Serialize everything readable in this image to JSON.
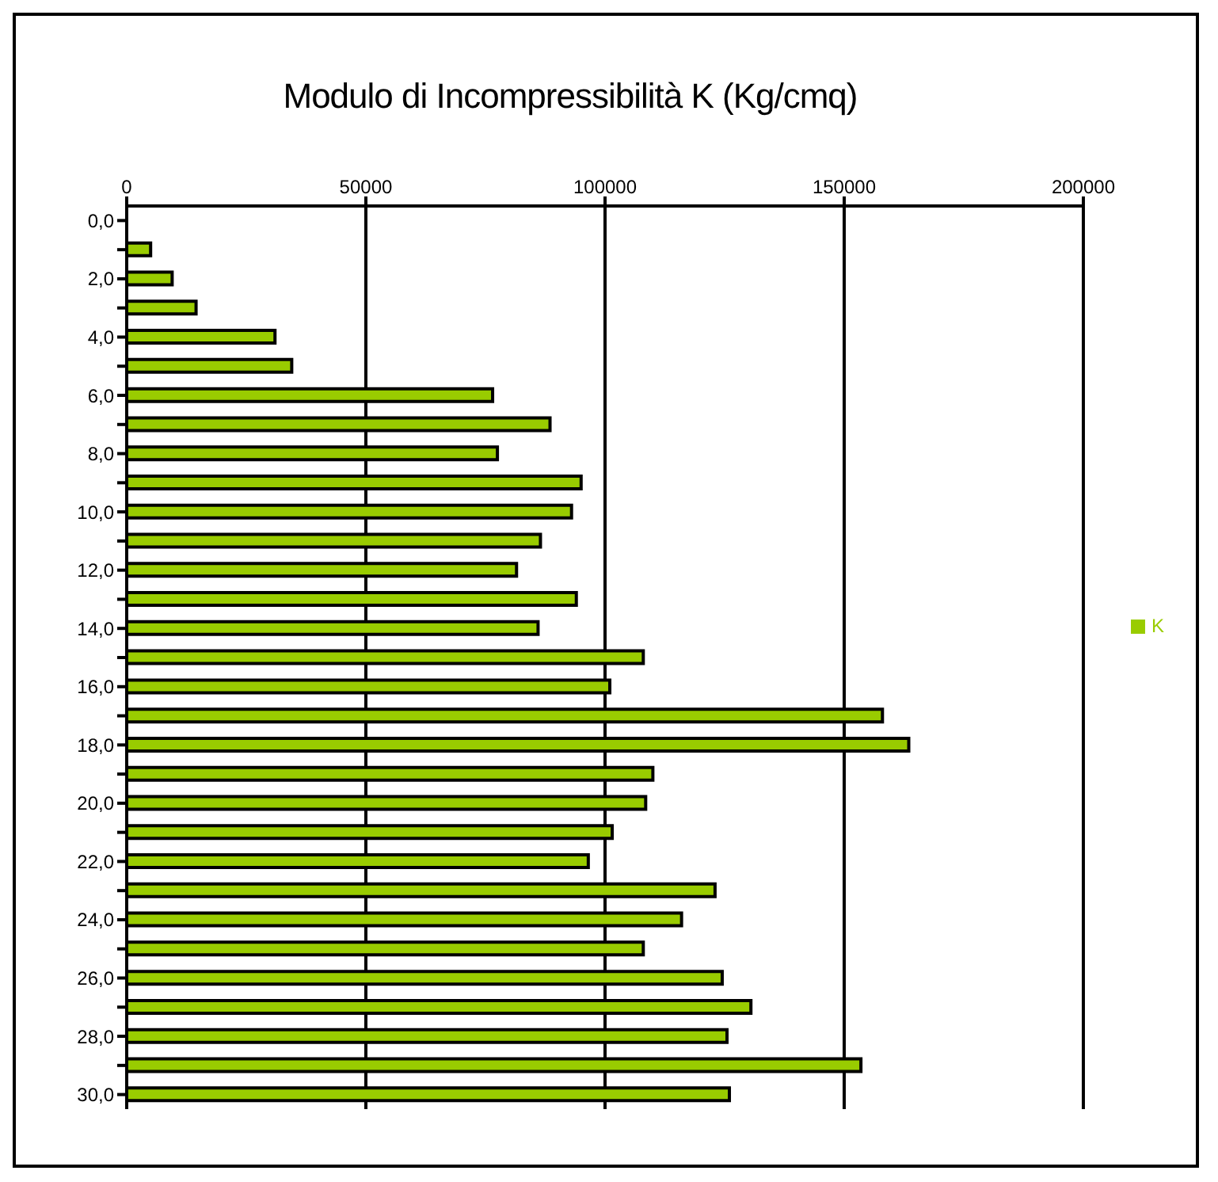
{
  "chart_data": {
    "type": "bar",
    "orientation": "horizontal",
    "title": "Modulo di Incompressibilità K (Kg/cmq)",
    "categories": [
      "0,0",
      null,
      "2,0",
      null,
      "4,0",
      null,
      "6,0",
      null,
      "8,0",
      null,
      "10,0",
      null,
      "12,0",
      null,
      "14,0",
      null,
      "16,0",
      null,
      "18,0",
      null,
      "20,0",
      null,
      "22,0",
      null,
      "24,0",
      null,
      "26,0",
      null,
      "28,0",
      null,
      "30,0"
    ],
    "series": [
      {
        "name": "K",
        "color": "#99cc00",
        "values": [
          null,
          5000,
          9500,
          14500,
          31000,
          34500,
          76500,
          88500,
          77500,
          95000,
          93000,
          86500,
          81500,
          94000,
          86000,
          108000,
          101000,
          158000,
          163500,
          110000,
          108500,
          101500,
          96500,
          123000,
          116000,
          108000,
          124500,
          130500,
          125500,
          153500,
          126000
        ]
      }
    ],
    "xlim": [
      0,
      200000
    ],
    "xticks": [
      0,
      50000,
      100000,
      150000,
      200000
    ],
    "grid": "x",
    "legend": "right"
  }
}
